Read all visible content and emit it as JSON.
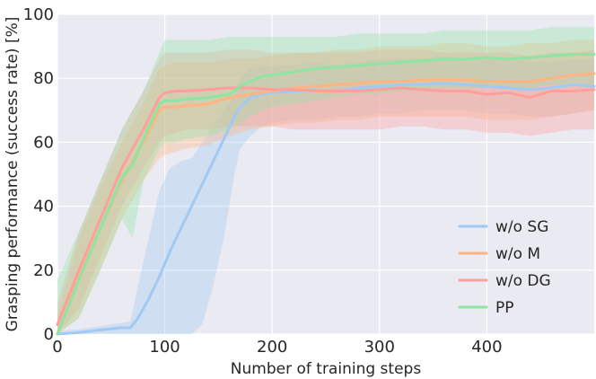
{
  "chart_data": {
    "type": "line",
    "xlabel": "Number of training steps",
    "ylabel": "Grasping performance (success rate) [%]",
    "xlim": [
      0,
      500
    ],
    "ylim": [
      0,
      100
    ],
    "xticks": [
      0,
      100,
      200,
      300,
      400
    ],
    "yticks": [
      0,
      20,
      40,
      60,
      80,
      100
    ],
    "grid": true,
    "background": "#eaeaf2",
    "legend_position": "lower right",
    "series": [
      {
        "name": "w/o SG",
        "color": "#a1c9f4",
        "x": [
          0,
          20,
          40,
          60,
          68,
          75,
          85,
          95,
          105,
          115,
          125,
          135,
          145,
          155,
          165,
          170,
          180,
          190,
          200,
          220,
          240,
          260,
          280,
          300,
          320,
          340,
          360,
          380,
          400,
          420,
          440,
          460,
          480,
          500
        ],
        "values": [
          0,
          0.5,
          1.3,
          2,
          2,
          5,
          11,
          18,
          26,
          33,
          40,
          47,
          54,
          61,
          68,
          71,
          74,
          75,
          75.5,
          76,
          76.5,
          76,
          77,
          77.5,
          78,
          78,
          78.5,
          78,
          77.5,
          77,
          76.5,
          77,
          78,
          77.5
        ],
        "lower": [
          0,
          0,
          0,
          0,
          0,
          0,
          0,
          0,
          0,
          0,
          0,
          3,
          15,
          30,
          50,
          58,
          62,
          65,
          66,
          67,
          67,
          68,
          68,
          69,
          69,
          70,
          70,
          70,
          69,
          69,
          68,
          68,
          69,
          70
        ],
        "upper": [
          1,
          1.5,
          2.5,
          3.5,
          4,
          15,
          30,
          45,
          52,
          54,
          55,
          60,
          65,
          70,
          75,
          80,
          83,
          84,
          84,
          84,
          85,
          84,
          85,
          86,
          86,
          86,
          87,
          86,
          86,
          86,
          85,
          85,
          86,
          86
        ]
      },
      {
        "name": "w/o M",
        "color": "#ffb482",
        "x": [
          0,
          20,
          40,
          60,
          80,
          95,
          100,
          110,
          120,
          140,
          160,
          180,
          200,
          220,
          240,
          260,
          280,
          300,
          320,
          340,
          360,
          380,
          400,
          420,
          440,
          460,
          480,
          500
        ],
        "values": [
          0,
          18,
          33,
          48,
          60,
          70,
          71,
          71,
          71.5,
          72,
          74,
          75,
          76,
          77,
          77.5,
          78,
          78.5,
          79,
          79,
          79.5,
          79.5,
          79.5,
          79,
          79,
          79,
          80,
          81,
          81.5
        ],
        "lower": [
          0,
          5,
          20,
          36,
          48,
          55,
          56,
          57,
          58,
          59,
          62,
          64,
          65,
          66,
          66,
          67,
          67,
          68,
          68,
          68,
          68,
          68,
          67,
          67,
          67,
          68,
          69,
          70
        ],
        "upper": [
          6,
          30,
          46,
          60,
          72,
          83,
          84,
          85,
          85,
          85,
          86,
          86,
          87,
          88,
          88,
          89,
          89,
          90,
          90,
          90,
          91,
          91,
          90,
          90,
          91,
          91,
          92,
          92
        ]
      },
      {
        "name": "w/o DG",
        "color": "#ff9f9b",
        "x": [
          0,
          20,
          40,
          60,
          80,
          95,
          100,
          110,
          120,
          140,
          160,
          180,
          200,
          220,
          240,
          260,
          280,
          300,
          320,
          340,
          360,
          380,
          400,
          420,
          440,
          460,
          480,
          500
        ],
        "values": [
          3,
          20,
          36,
          52,
          64,
          74,
          75.5,
          76,
          76,
          76.5,
          77,
          77,
          76.5,
          76.5,
          76,
          76,
          76,
          76.5,
          77,
          76.5,
          76,
          76,
          75,
          75.5,
          74,
          76,
          76,
          76.5
        ],
        "lower": [
          0,
          8,
          24,
          40,
          52,
          60,
          62,
          63,
          64,
          64,
          65,
          65,
          65,
          64,
          64,
          64,
          64,
          64,
          65,
          65,
          64,
          64,
          63,
          63,
          62,
          63,
          64,
          64
        ],
        "upper": [
          10,
          32,
          48,
          64,
          76,
          86,
          88,
          88,
          88,
          88,
          89,
          89,
          88,
          88,
          88,
          88,
          88,
          89,
          89,
          89,
          88,
          88,
          88,
          88,
          87,
          88,
          88,
          89
        ]
      },
      {
        "name": "PP",
        "color": "#8de5a1",
        "x": [
          0,
          20,
          40,
          60,
          70,
          80,
          95,
          100,
          110,
          120,
          140,
          160,
          170,
          180,
          190,
          200,
          220,
          240,
          260,
          280,
          300,
          320,
          340,
          360,
          380,
          400,
          420,
          440,
          460,
          480,
          500
        ],
        "values": [
          0,
          17,
          33,
          49,
          53,
          61,
          72,
          73,
          73,
          73.5,
          74,
          75,
          77.5,
          79,
          80.5,
          81,
          82,
          83,
          83.5,
          84,
          84.5,
          85,
          85.5,
          86,
          86,
          86.5,
          86,
          86.5,
          87,
          87.5,
          87.5
        ],
        "lower": [
          0,
          5,
          20,
          36,
          30,
          48,
          58,
          60,
          60,
          61,
          62,
          64,
          66,
          68,
          70,
          71,
          72,
          73,
          74,
          75,
          75,
          76,
          76,
          77,
          77,
          77,
          77,
          77,
          78,
          78,
          78
        ],
        "upper": [
          17,
          32,
          48,
          64,
          70,
          76,
          88,
          92,
          92,
          92,
          92,
          93,
          93,
          93,
          93,
          93,
          93,
          93,
          93,
          94,
          94,
          94,
          94,
          95,
          95,
          95,
          95,
          95,
          96,
          96,
          96
        ]
      }
    ]
  }
}
